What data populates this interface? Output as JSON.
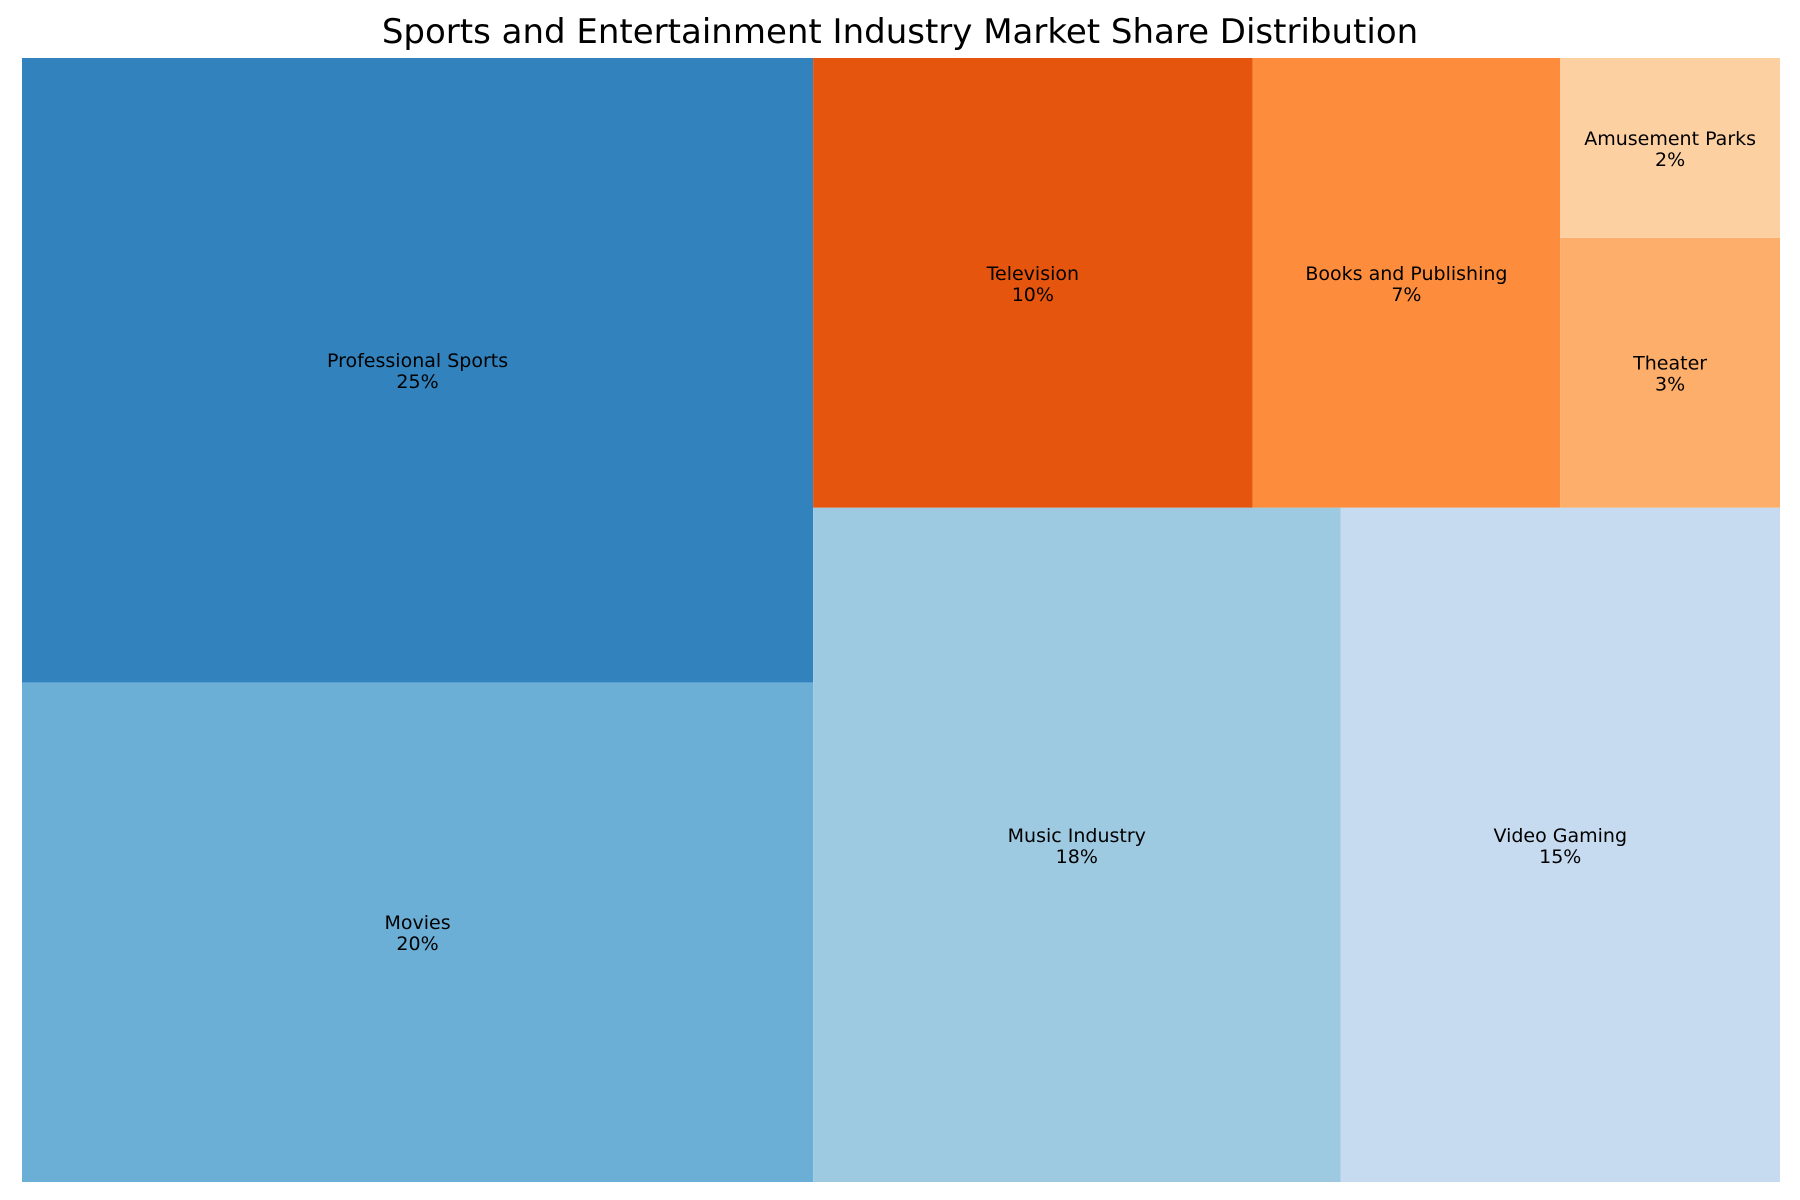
{
  "chart_data": {
    "type": "treemap",
    "title": "Sports and Entertainment Industry Market Share Distribution",
    "items": [
      {
        "label": "Professional Sports",
        "value": 25,
        "value_label": "25%",
        "color": "#3182bd"
      },
      {
        "label": "Movies",
        "value": 20,
        "value_label": "20%",
        "color": "#6baed6"
      },
      {
        "label": "Music Industry",
        "value": 18,
        "value_label": "18%",
        "color": "#9ecae1"
      },
      {
        "label": "Video Gaming",
        "value": 15,
        "value_label": "15%",
        "color": "#c6dbef"
      },
      {
        "label": "Television",
        "value": 10,
        "value_label": "10%",
        "color": "#e6550d"
      },
      {
        "label": "Books and Publishing",
        "value": 7,
        "value_label": "7%",
        "color": "#fd8d3c"
      },
      {
        "label": "Theater",
        "value": 3,
        "value_label": "3%",
        "color": "#fdae6b"
      },
      {
        "label": "Amusement Parks",
        "value": 2,
        "value_label": "2%",
        "color": "#fdd0a2"
      }
    ]
  }
}
